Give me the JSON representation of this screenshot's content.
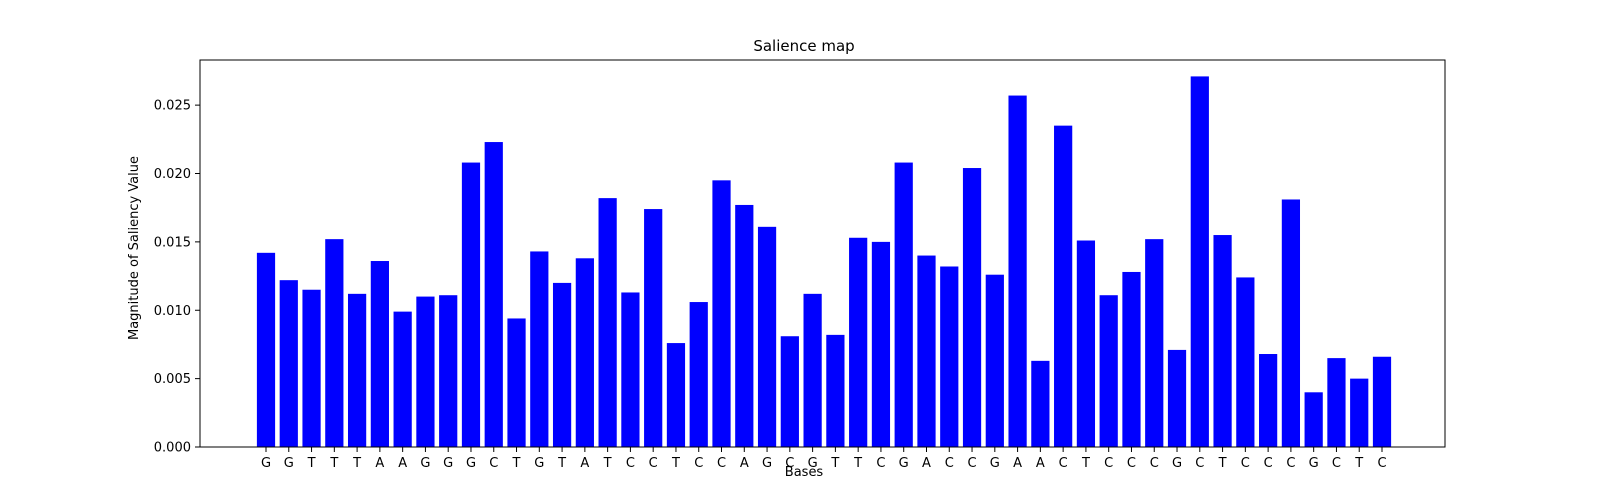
{
  "chart_data": {
    "type": "bar",
    "title": "Salience map",
    "xlabel": "Bases",
    "ylabel": "Magnitude of Saliency Value",
    "ylim": [
      0,
      0.0283
    ],
    "yticks": [
      0.0,
      0.005,
      0.01,
      0.015,
      0.02,
      0.025
    ],
    "ytick_labels": [
      "0.000",
      "0.005",
      "0.010",
      "0.015",
      "0.020",
      "0.025"
    ],
    "grid": false,
    "bar_color": "#0000ff",
    "categories": [
      "G",
      "G",
      "T",
      "T",
      "T",
      "A",
      "A",
      "G",
      "G",
      "G",
      "C",
      "T",
      "G",
      "T",
      "A",
      "T",
      "C",
      "C",
      "T",
      "C",
      "C",
      "A",
      "G",
      "C",
      "G",
      "T",
      "T",
      "C",
      "G",
      "A",
      "C",
      "C",
      "G",
      "A",
      "A",
      "C",
      "T",
      "C",
      "C",
      "C",
      "G",
      "C",
      "T",
      "C",
      "C",
      "C",
      "G",
      "C",
      "T",
      "C"
    ],
    "values": [
      0.0142,
      0.0122,
      0.0115,
      0.0152,
      0.0112,
      0.0136,
      0.0099,
      0.011,
      0.0111,
      0.0208,
      0.0223,
      0.0094,
      0.0143,
      0.012,
      0.0138,
      0.0182,
      0.0113,
      0.0174,
      0.0076,
      0.0106,
      0.0195,
      0.0177,
      0.0161,
      0.0081,
      0.0112,
      0.0082,
      0.0153,
      0.015,
      0.0208,
      0.014,
      0.0132,
      0.0204,
      0.0126,
      0.0257,
      0.0063,
      0.0235,
      0.0151,
      0.0111,
      0.0128,
      0.0152,
      0.0071,
      0.0271,
      0.0155,
      0.0124,
      0.0068,
      0.0181,
      0.004,
      0.0065,
      0.005,
      0.0066
    ]
  }
}
